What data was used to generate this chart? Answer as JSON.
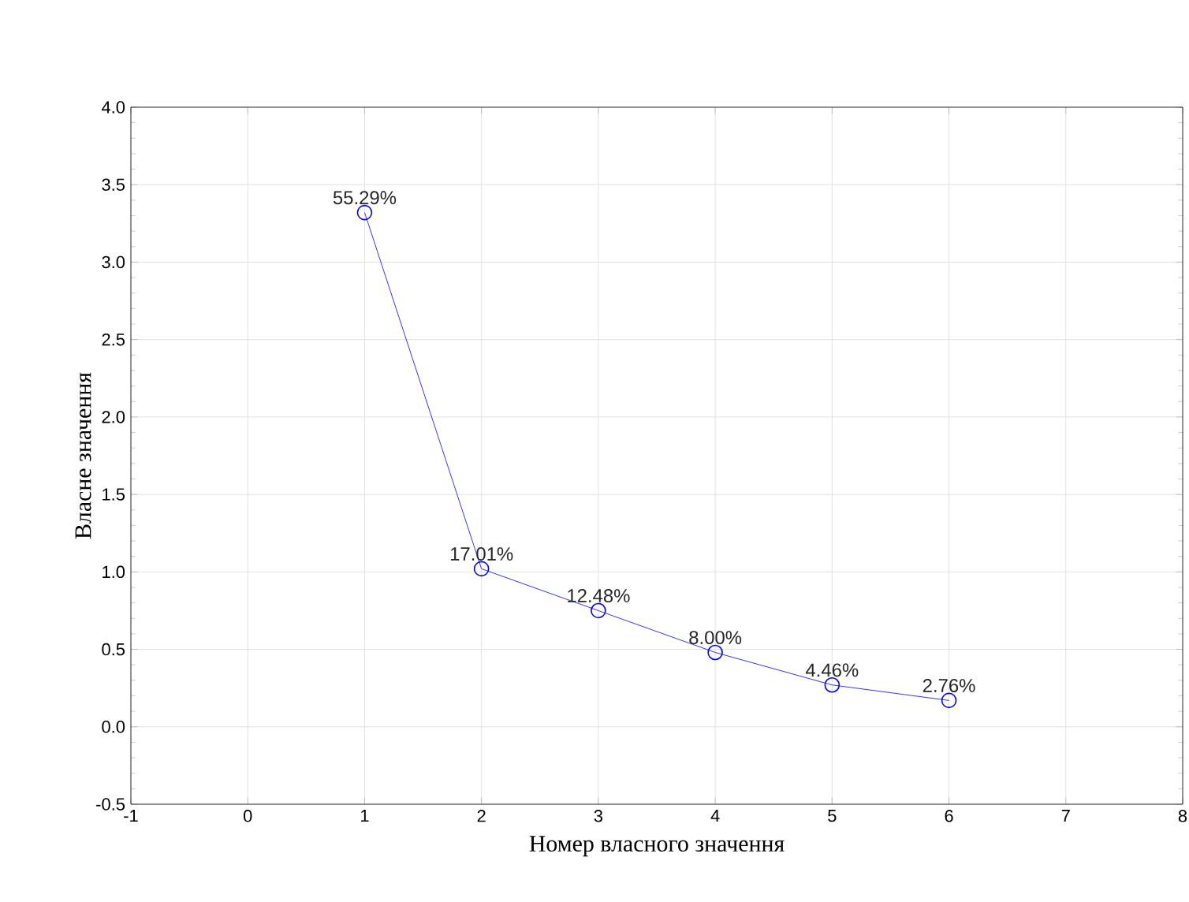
{
  "chart_data": {
    "type": "line",
    "xlabel": "Номер власного значення",
    "ylabel": "Власне значення",
    "x": [
      1,
      2,
      3,
      4,
      5,
      6
    ],
    "series": [
      {
        "color": "#0000ff",
        "values": [
          3.32,
          1.02,
          0.75,
          0.48,
          0.27,
          0.17
        ]
      }
    ],
    "annotations": [
      {
        "text": "55.29%",
        "x": 1,
        "y": 3.32
      },
      {
        "text": "17.01%",
        "x": 2,
        "y": 1.02
      },
      {
        "text": "12.48%",
        "x": 3,
        "y": 0.75
      },
      {
        "text": "8.00%",
        "x": 4,
        "y": 0.48
      },
      {
        "text": "4.46%",
        "x": 5,
        "y": 0.27
      },
      {
        "text": "2.76%",
        "x": 6,
        "y": 0.17
      }
    ],
    "xlim": [
      -1,
      8
    ],
    "xticks": [
      -1,
      0,
      1,
      2,
      3,
      4,
      5,
      6,
      7,
      8
    ],
    "ylim": [
      -0.5,
      4.0
    ],
    "yticks": [
      {
        "value": -0.5,
        "label": "-0.5"
      },
      {
        "value": 0.0,
        "label": "0.0"
      },
      {
        "value": 0.5,
        "label": "0.5"
      },
      {
        "value": 1.0,
        "label": "1.0"
      },
      {
        "value": 1.5,
        "label": "1.5"
      },
      {
        "value": 2.0,
        "label": "2.0"
      },
      {
        "value": 2.5,
        "label": "2.5"
      },
      {
        "value": 3.0,
        "label": "3.0"
      },
      {
        "value": 3.5,
        "label": "3.5"
      },
      {
        "value": 4.0,
        "label": "4.0"
      }
    ],
    "grid": true,
    "marker": "circle",
    "line_style": "solid"
  }
}
